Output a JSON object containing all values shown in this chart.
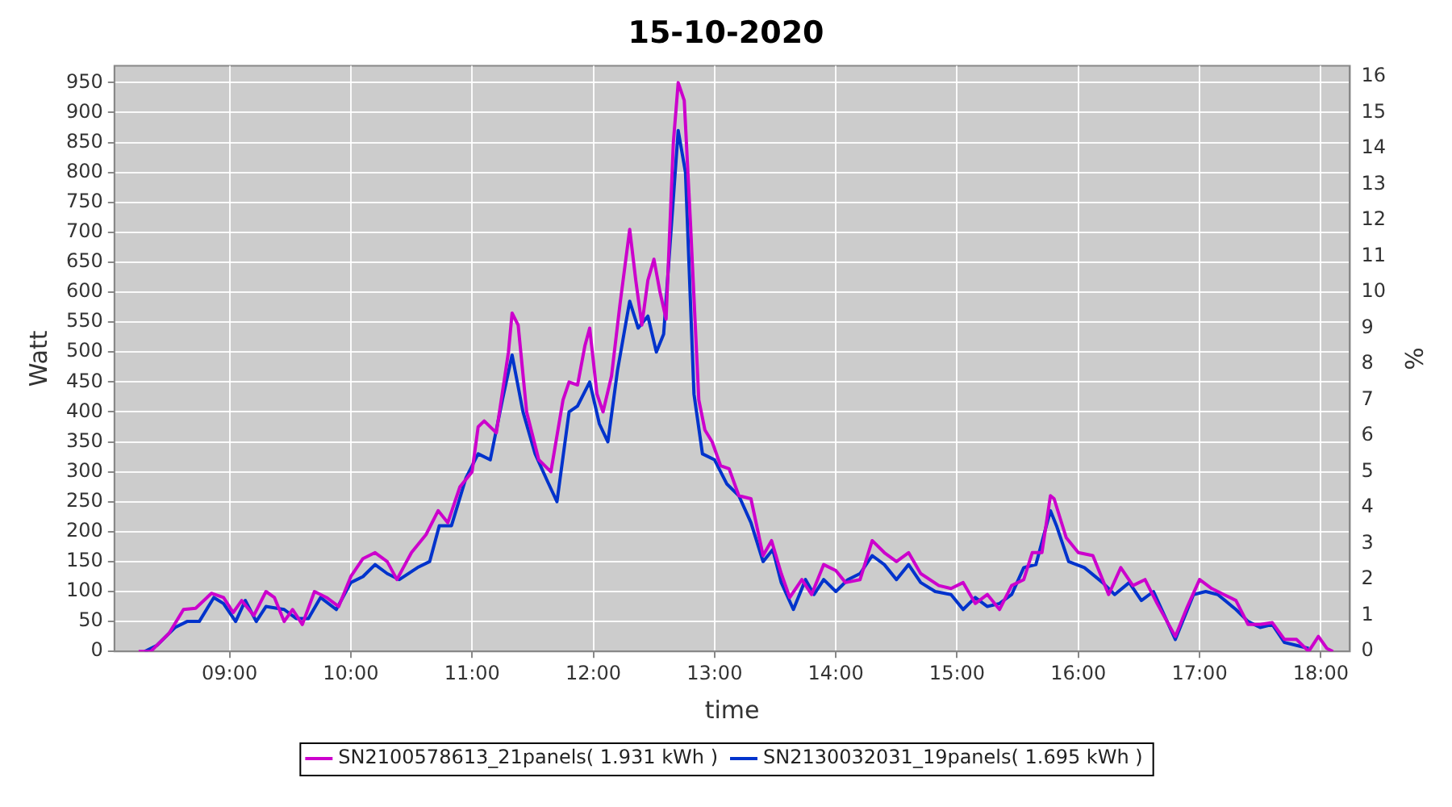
{
  "chart_data": {
    "type": "line",
    "title": "15-10-2020",
    "xlabel": "time",
    "ylabel": "Watt",
    "y2label": "%",
    "xlim": [
      8.05,
      18.24
    ],
    "xticks": [
      {
        "value": 9,
        "label": "09:00"
      },
      {
        "value": 10,
        "label": "10:00"
      },
      {
        "value": 11,
        "label": "11:00"
      },
      {
        "value": 12,
        "label": "12:00"
      },
      {
        "value": 13,
        "label": "13:00"
      },
      {
        "value": 14,
        "label": "14:00"
      },
      {
        "value": 15,
        "label": "15:00"
      },
      {
        "value": 16,
        "label": "16:00"
      },
      {
        "value": 17,
        "label": "17:00"
      },
      {
        "value": 18,
        "label": "18:00"
      }
    ],
    "ylim": [
      0,
      978
    ],
    "yticks": [
      0,
      50,
      100,
      150,
      200,
      250,
      300,
      350,
      400,
      450,
      500,
      550,
      600,
      650,
      700,
      750,
      800,
      850,
      900,
      950
    ],
    "y2lim": [
      0,
      16.3
    ],
    "y2ticks": [
      0,
      1,
      2,
      3,
      4,
      5,
      6,
      7,
      8,
      9,
      10,
      11,
      12,
      13,
      14,
      15,
      16
    ],
    "grid": true,
    "legend": "bottom",
    "marker": "none",
    "line_style": "solid",
    "series": [
      {
        "name": "SN2100578613_21panels( 1.931 kWh )",
        "color": "#cc00cc",
        "x": [
          8.25,
          8.35,
          8.5,
          8.62,
          8.72,
          8.85,
          8.95,
          9.03,
          9.1,
          9.2,
          9.3,
          9.37,
          9.45,
          9.52,
          9.6,
          9.7,
          9.8,
          9.9,
          10.0,
          10.1,
          10.2,
          10.3,
          10.38,
          10.5,
          10.62,
          10.72,
          10.8,
          10.9,
          11.0,
          11.05,
          11.1,
          11.2,
          11.3,
          11.33,
          11.38,
          11.45,
          11.55,
          11.65,
          11.75,
          11.8,
          11.87,
          11.93,
          11.97,
          12.03,
          12.08,
          12.15,
          12.22,
          12.3,
          12.35,
          12.4,
          12.45,
          12.5,
          12.55,
          12.6,
          12.66,
          12.7,
          12.75,
          12.8,
          12.87,
          12.92,
          12.98,
          13.05,
          13.12,
          13.2,
          13.3,
          13.4,
          13.47,
          13.55,
          13.62,
          13.72,
          13.8,
          13.9,
          14.0,
          14.08,
          14.2,
          14.3,
          14.4,
          14.5,
          14.6,
          14.7,
          14.85,
          14.95,
          15.05,
          15.15,
          15.25,
          15.35,
          15.45,
          15.55,
          15.62,
          15.7,
          15.77,
          15.8,
          15.9,
          16.0,
          16.12,
          16.25,
          16.35,
          16.45,
          16.55,
          16.65,
          16.8,
          16.9,
          17.0,
          17.1,
          17.2,
          17.3,
          17.4,
          17.5,
          17.6,
          17.7,
          17.8,
          17.9,
          17.98,
          18.05,
          18.1
        ],
        "values": [
          0,
          0,
          30,
          70,
          72,
          97,
          90,
          65,
          85,
          60,
          100,
          90,
          50,
          70,
          45,
          100,
          90,
          75,
          125,
          155,
          165,
          150,
          120,
          165,
          195,
          235,
          215,
          275,
          300,
          375,
          385,
          365,
          500,
          565,
          545,
          400,
          320,
          300,
          420,
          450,
          445,
          510,
          540,
          430,
          400,
          460,
          580,
          705,
          620,
          545,
          620,
          655,
          600,
          555,
          850,
          950,
          920,
          720,
          420,
          370,
          350,
          310,
          305,
          260,
          255,
          160,
          185,
          130,
          90,
          120,
          95,
          145,
          135,
          115,
          120,
          185,
          165,
          150,
          165,
          130,
          110,
          105,
          115,
          80,
          95,
          70,
          110,
          120,
          165,
          165,
          260,
          255,
          190,
          165,
          160,
          95,
          140,
          110,
          120,
          80,
          25,
          75,
          120,
          105,
          95,
          85,
          45,
          45,
          48,
          20,
          20,
          0,
          25,
          5,
          0
        ]
      },
      {
        "name": "SN2130032031_19panels( 1.695 kWh )",
        "color": "#0033cc",
        "x": [
          8.3,
          8.4,
          8.55,
          8.65,
          8.75,
          8.87,
          8.95,
          9.05,
          9.13,
          9.22,
          9.3,
          9.45,
          9.55,
          9.65,
          9.75,
          9.88,
          10.0,
          10.1,
          10.2,
          10.3,
          10.4,
          10.55,
          10.65,
          10.73,
          10.83,
          10.95,
          11.05,
          11.15,
          11.25,
          11.33,
          11.42,
          11.52,
          11.62,
          11.7,
          11.8,
          11.87,
          11.97,
          12.05,
          12.12,
          12.2,
          12.3,
          12.37,
          12.45,
          12.52,
          12.58,
          12.64,
          12.7,
          12.76,
          12.83,
          12.9,
          13.0,
          13.1,
          13.2,
          13.3,
          13.4,
          13.48,
          13.55,
          13.65,
          13.75,
          13.82,
          13.9,
          14.0,
          14.1,
          14.2,
          14.3,
          14.4,
          14.5,
          14.6,
          14.7,
          14.82,
          14.95,
          15.05,
          15.15,
          15.25,
          15.35,
          15.45,
          15.55,
          15.65,
          15.77,
          15.82,
          15.92,
          16.05,
          16.2,
          16.3,
          16.42,
          16.52,
          16.62,
          16.8,
          16.95,
          17.05,
          17.15,
          17.3,
          17.4,
          17.5,
          17.6,
          17.7,
          17.8,
          17.9
        ],
        "values": [
          0,
          10,
          40,
          50,
          50,
          90,
          80,
          50,
          85,
          50,
          75,
          70,
          55,
          55,
          90,
          70,
          115,
          125,
          145,
          130,
          120,
          140,
          150,
          210,
          210,
          290,
          330,
          320,
          420,
          495,
          400,
          330,
          285,
          250,
          400,
          410,
          450,
          380,
          350,
          470,
          585,
          540,
          560,
          500,
          530,
          700,
          870,
          800,
          430,
          330,
          320,
          280,
          260,
          215,
          150,
          170,
          115,
          70,
          120,
          95,
          120,
          100,
          120,
          130,
          160,
          145,
          120,
          145,
          115,
          100,
          95,
          70,
          90,
          75,
          80,
          95,
          140,
          145,
          235,
          210,
          150,
          140,
          115,
          95,
          115,
          85,
          100,
          20,
          95,
          100,
          95,
          70,
          50,
          40,
          45,
          15,
          10,
          5
        ]
      }
    ]
  }
}
